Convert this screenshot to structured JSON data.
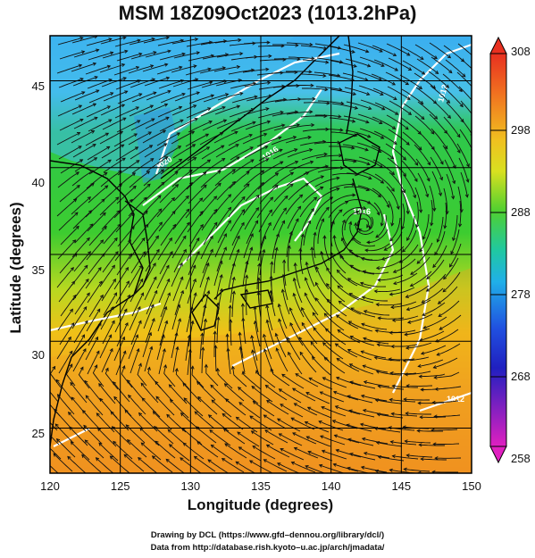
{
  "title": "MSM 18Z09Oct2023 (1013.2hPa)",
  "xaxis": {
    "label": "Longitude (degrees)",
    "ticks": [
      "120",
      "125",
      "130",
      "135",
      "140",
      "145",
      "150"
    ],
    "range": [
      120,
      150
    ]
  },
  "yaxis": {
    "label": "Latitude  (degrees)",
    "ticks": [
      "25",
      "30",
      "35",
      "40",
      "45"
    ],
    "range": [
      22.4,
      47.6
    ]
  },
  "colorbar": {
    "ticks": [
      "308",
      "298",
      "288",
      "278",
      "268",
      "258"
    ],
    "range": [
      258,
      308
    ]
  },
  "credits": {
    "line1": "Drawing by DCL (https://www.gfd–dennou.org/library/dcl/)",
    "line2": "Data from http://database.rish.kyoto–u.ac.jp/arch/jmadata/"
  },
  "contour_labels": [
    "1020",
    "1016",
    "1016",
    "1012",
    "1012"
  ],
  "colors": {
    "cold": "#3ab0f0",
    "mid": "#2ec83c",
    "warm": "#f0a020",
    "hot": "#e05020",
    "land_line": "#000000",
    "isobar": "#ffffff"
  },
  "features": {
    "cyclone_center": {
      "lon": 142.3,
      "lat": 36.8
    }
  }
}
